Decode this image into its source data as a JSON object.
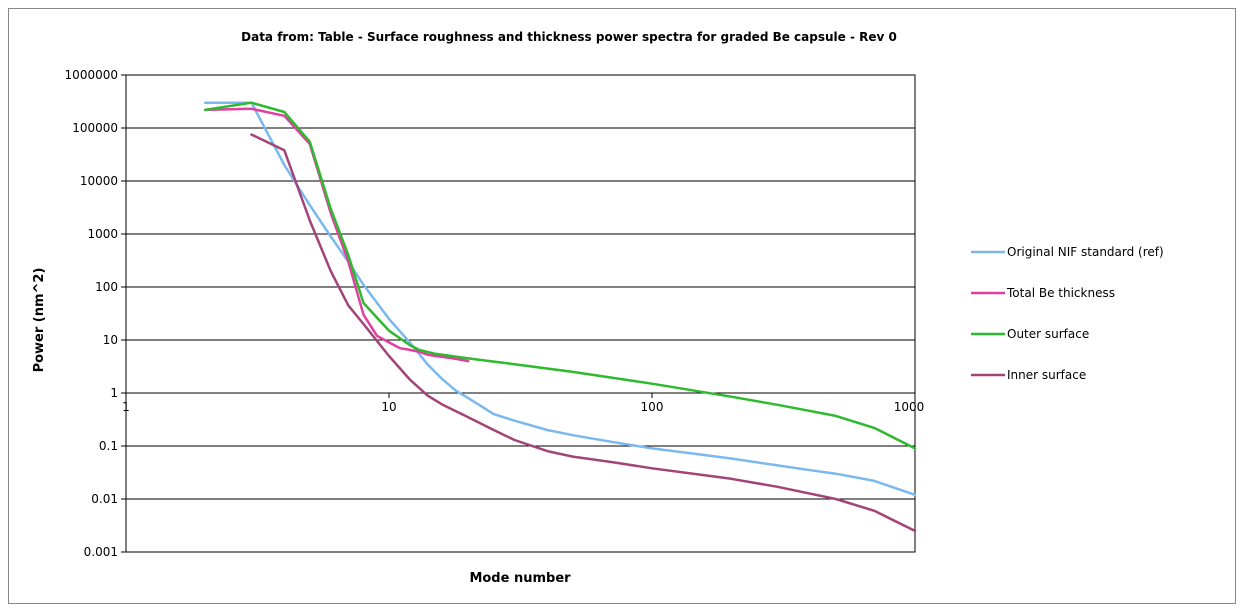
{
  "chart_data": {
    "type": "line",
    "title": "Data from:  Table - Surface roughness and thickness power spectra for graded Be capsule - Rev 0",
    "xlabel": "Mode number",
    "ylabel": "Power (nm^2)",
    "x_scale": "log",
    "y_scale": "log",
    "xlim": [
      1,
      1000
    ],
    "ylim": [
      0.001,
      1000000
    ],
    "x_ticks": [
      "1",
      "10",
      "100",
      "1000"
    ],
    "y_ticks": [
      "1000000",
      "100000",
      "10000",
      "1000",
      "100",
      "10",
      "1",
      "0.1",
      "0.01",
      "0.001"
    ],
    "grid": "horizontal major",
    "legend_position": "right",
    "series": [
      {
        "name": "Original NIF standard (ref)",
        "color": "#7ab8ee",
        "x": [
          2,
          3,
          4,
          5,
          6,
          7,
          8,
          10,
          12,
          14,
          16,
          18,
          20,
          25,
          30,
          40,
          50,
          70,
          100,
          150,
          200,
          300,
          400,
          500,
          700,
          1000
        ],
        "y": [
          300000,
          300000,
          20000,
          3500,
          900,
          300,
          110,
          25,
          9,
          3.5,
          1.8,
          1.1,
          0.8,
          0.4,
          0.3,
          0.2,
          0.16,
          0.12,
          0.09,
          0.07,
          0.058,
          0.043,
          0.035,
          0.03,
          0.022,
          0.012
        ]
      },
      {
        "name": "Total Be thickness",
        "color": "#e040a0",
        "x": [
          2,
          3,
          4,
          5,
          6,
          7,
          8,
          9,
          10,
          11,
          12,
          13,
          14,
          15,
          16,
          18,
          20
        ],
        "y": [
          220000,
          230000,
          170000,
          50000,
          2500,
          300,
          30,
          12,
          9,
          7,
          6.5,
          6,
          5.3,
          5,
          4.8,
          4.4,
          4
        ]
      },
      {
        "name": "Outer surface",
        "color": "#2dbb2d",
        "x": [
          2,
          3,
          4,
          5,
          6,
          7,
          8,
          10,
          12,
          13,
          15,
          20,
          30,
          50,
          100,
          200,
          300,
          500,
          700,
          1000
        ],
        "y": [
          220000,
          300000,
          200000,
          55000,
          3000,
          400,
          50,
          15,
          8,
          6.5,
          5.5,
          4.5,
          3.5,
          2.5,
          1.5,
          0.85,
          0.6,
          0.37,
          0.22,
          0.09
        ]
      },
      {
        "name": "Inner surface",
        "color": "#a34478",
        "x": [
          3,
          4,
          5,
          6,
          7,
          8,
          10,
          12,
          14,
          16,
          20,
          25,
          30,
          40,
          50,
          70,
          100,
          200,
          300,
          500,
          700,
          1000
        ],
        "y": [
          75000,
          38000,
          1800,
          200,
          45,
          20,
          5,
          1.8,
          0.9,
          0.6,
          0.35,
          0.2,
          0.13,
          0.08,
          0.063,
          0.05,
          0.038,
          0.024,
          0.017,
          0.01,
          0.006,
          0.0025
        ]
      }
    ]
  }
}
